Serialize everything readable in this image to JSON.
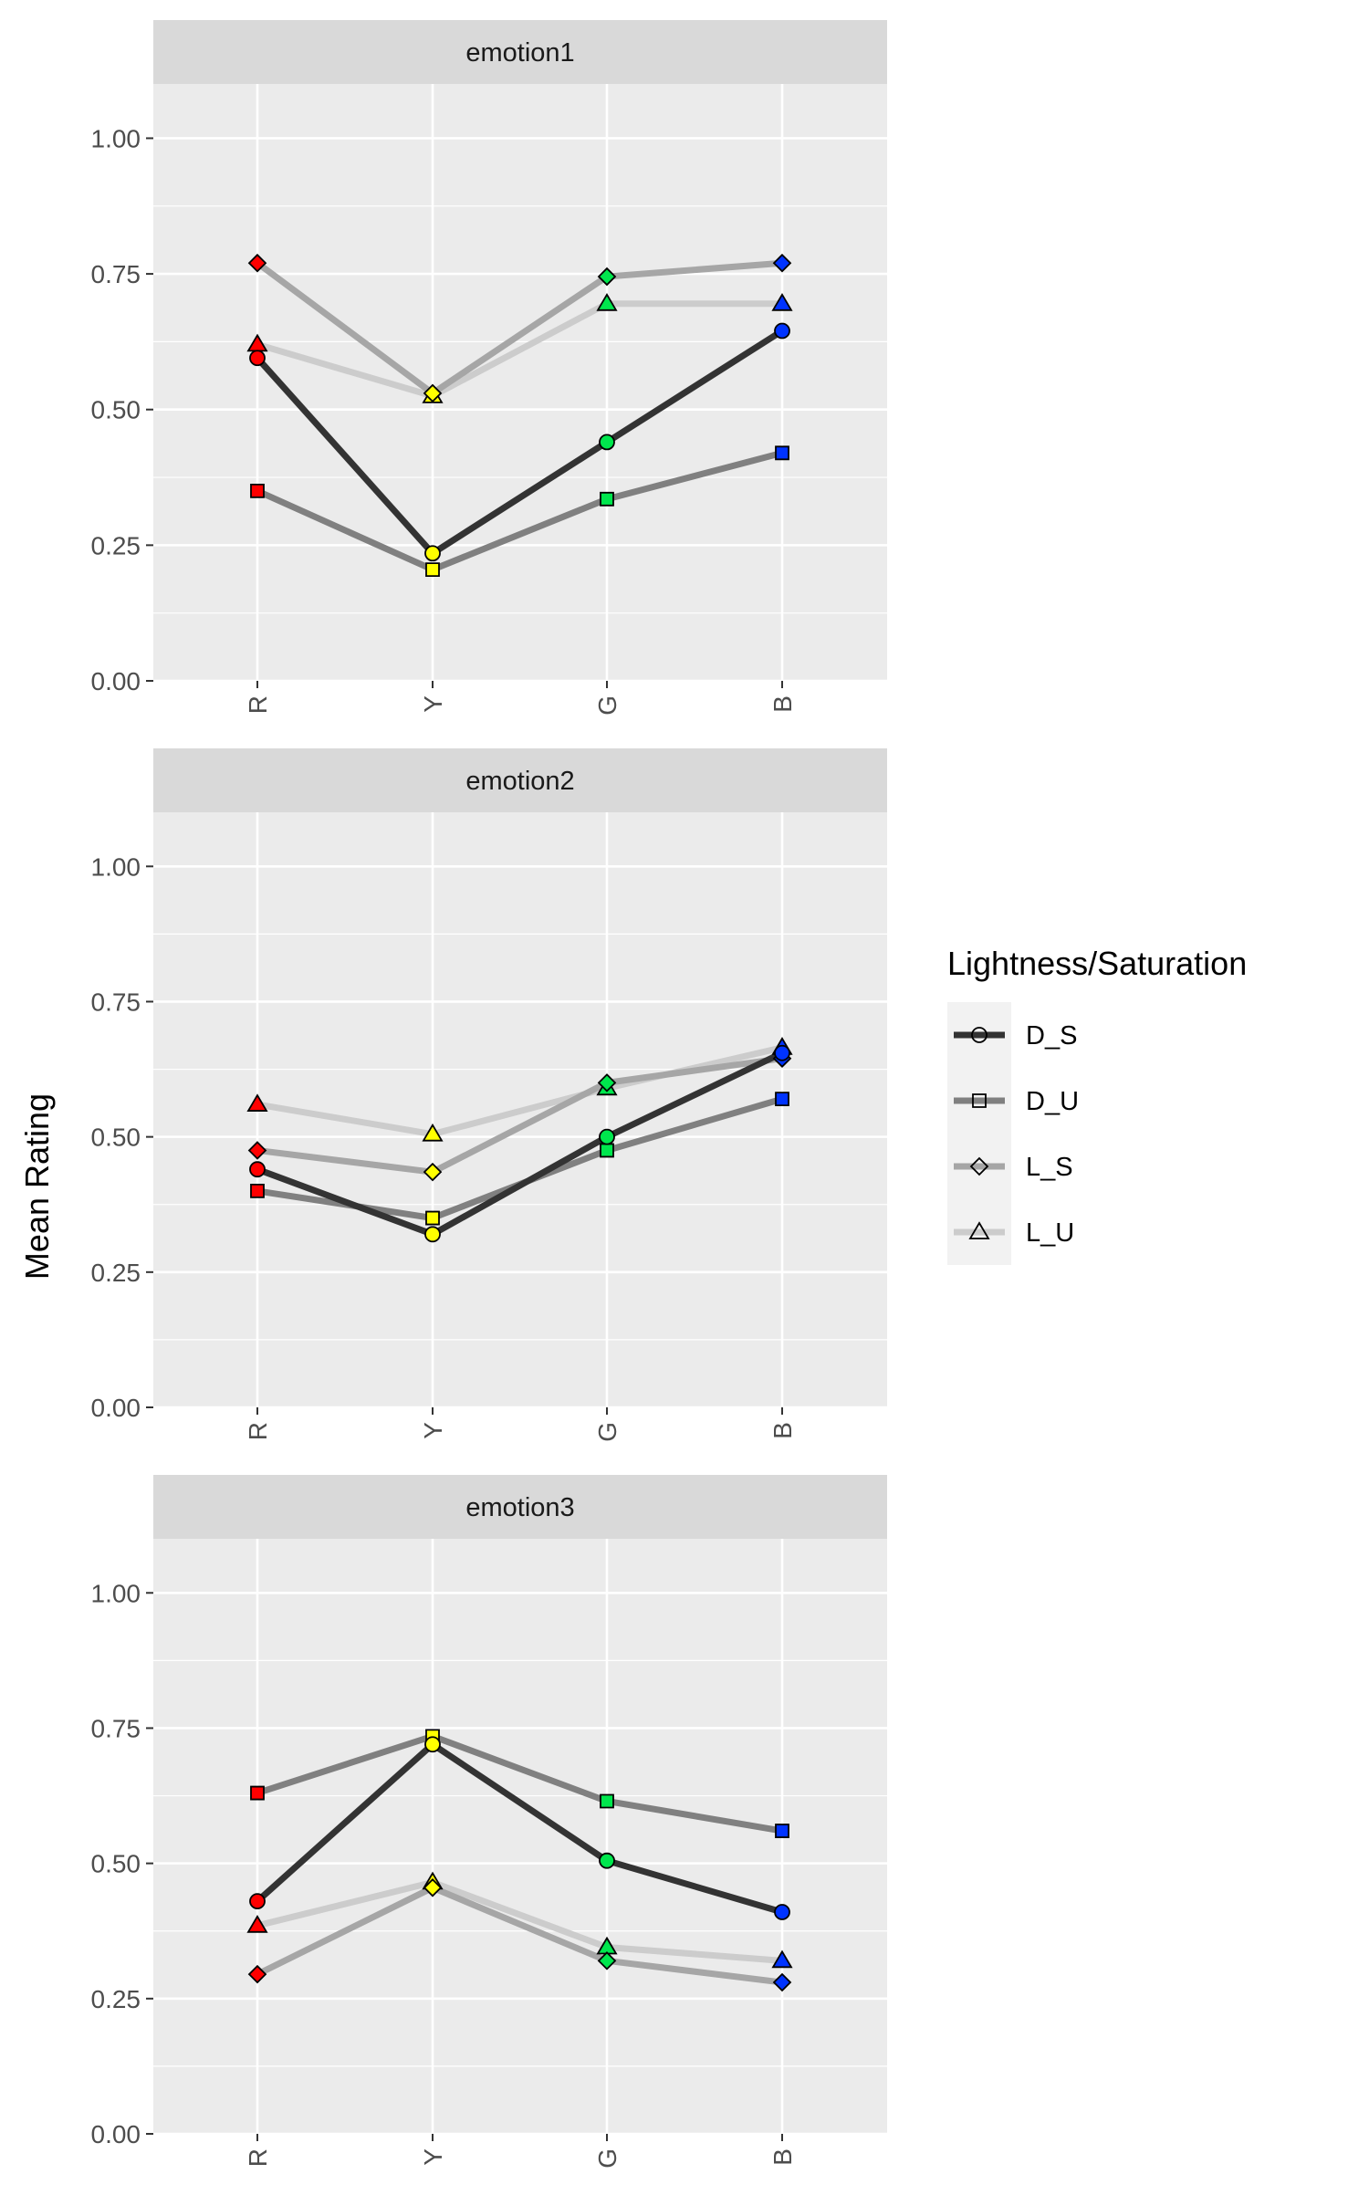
{
  "chart_data": {
    "type": "line",
    "ylabel": "Mean Rating",
    "ylim": [
      0,
      1.1
    ],
    "y_ticks": [
      "0.00",
      "0.25",
      "0.50",
      "0.75",
      "1.00"
    ],
    "categories": [
      "R",
      "Y",
      "G",
      "B"
    ],
    "category_colors": {
      "R": "#ff0000",
      "Y": "#ffff00",
      "G": "#00e64d",
      "B": "#0033ff"
    },
    "legend": {
      "title": "Lightness/Saturation",
      "position": "right",
      "entries": [
        {
          "name": "D_S",
          "shape": "circle",
          "line_color": "#333333"
        },
        {
          "name": "D_U",
          "shape": "square",
          "line_color": "#808080"
        },
        {
          "name": "L_S",
          "shape": "diamond",
          "line_color": "#a6a6a6"
        },
        {
          "name": "L_U",
          "shape": "triangle",
          "line_color": "#cccccc"
        }
      ]
    },
    "panels": [
      {
        "title": "emotion1",
        "series": [
          {
            "name": "D_S",
            "values": [
              0.595,
              0.235,
              0.44,
              0.645
            ]
          },
          {
            "name": "D_U",
            "values": [
              0.35,
              0.205,
              0.335,
              0.42
            ]
          },
          {
            "name": "L_S",
            "values": [
              0.77,
              0.53,
              0.745,
              0.77
            ]
          },
          {
            "name": "L_U",
            "values": [
              0.62,
              0.525,
              0.695,
              0.695
            ]
          }
        ]
      },
      {
        "title": "emotion2",
        "series": [
          {
            "name": "D_S",
            "values": [
              0.44,
              0.32,
              0.5,
              0.655
            ]
          },
          {
            "name": "D_U",
            "values": [
              0.4,
              0.35,
              0.475,
              0.57
            ]
          },
          {
            "name": "L_S",
            "values": [
              0.475,
              0.435,
              0.6,
              0.645
            ]
          },
          {
            "name": "L_U",
            "values": [
              0.56,
              0.505,
              0.59,
              0.665
            ]
          }
        ]
      },
      {
        "title": "emotion3",
        "series": [
          {
            "name": "D_S",
            "values": [
              0.43,
              0.72,
              0.505,
              0.41
            ]
          },
          {
            "name": "D_U",
            "values": [
              0.63,
              0.735,
              0.615,
              0.56
            ]
          },
          {
            "name": "L_S",
            "values": [
              0.295,
              0.455,
              0.32,
              0.28
            ]
          },
          {
            "name": "L_U",
            "values": [
              0.385,
              0.465,
              0.345,
              0.32
            ]
          }
        ]
      }
    ]
  }
}
